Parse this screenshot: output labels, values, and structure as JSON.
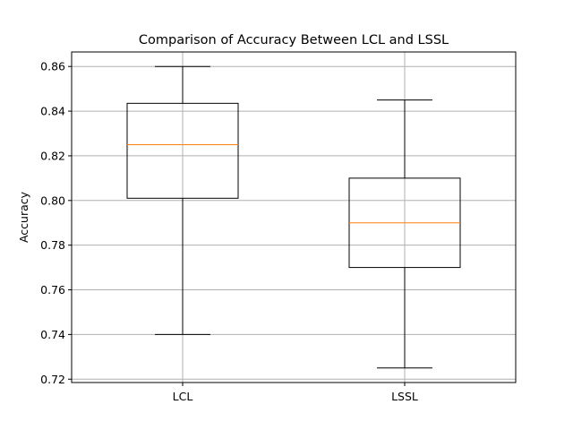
{
  "chart_data": {
    "type": "boxplot",
    "title": "Comparison of Accuracy Between LCL and LSSL",
    "xlabel": "",
    "ylabel": "Accuracy",
    "ylim": [
      0.7185,
      0.8665
    ],
    "yticks": [
      "0.72",
      "0.74",
      "0.76",
      "0.78",
      "0.80",
      "0.82",
      "0.84",
      "0.86"
    ],
    "grid": true,
    "categories": [
      "LCL",
      "LSSL"
    ],
    "boxes": [
      {
        "label": "LCL",
        "whisker_low": 0.74,
        "q1": 0.801,
        "median": 0.825,
        "q3": 0.8435,
        "whisker_high": 0.86
      },
      {
        "label": "LSSL",
        "whisker_low": 0.725,
        "q1": 0.77,
        "median": 0.79,
        "q3": 0.81,
        "whisker_high": 0.845
      }
    ],
    "colors": {
      "box": "#000000",
      "median": "#ff7f0e",
      "grid": "#b0b0b0"
    }
  }
}
